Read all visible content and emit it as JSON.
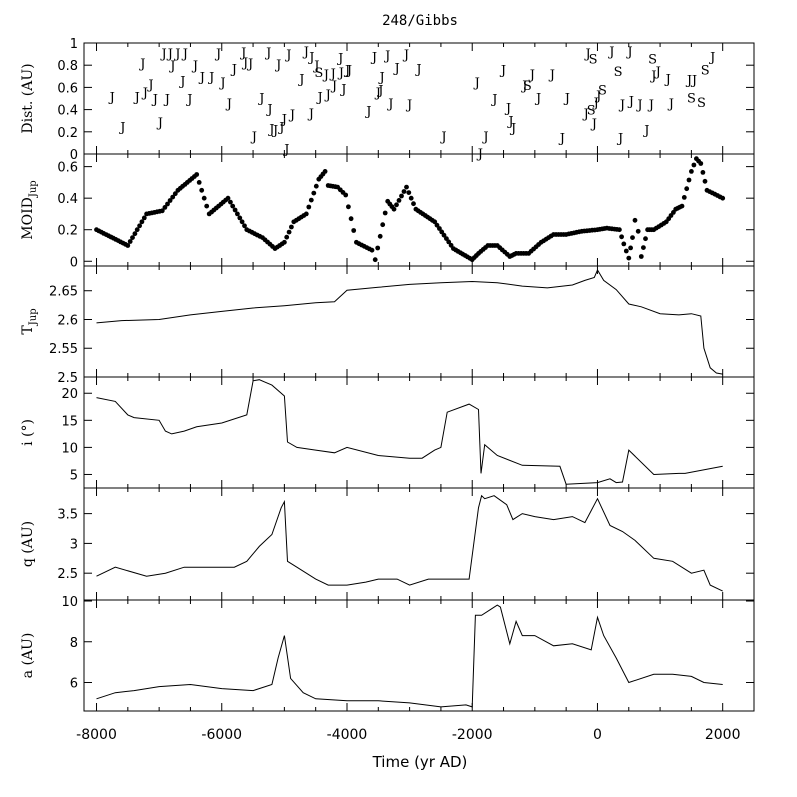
{
  "chart_data": {
    "type": "line",
    "title": "248/Gibbs",
    "xlabel": "Time (yr AD)",
    "xlim": [
      -8200,
      2500
    ],
    "xticks": [
      -8000,
      -6000,
      -4000,
      -2000,
      0,
      2000
    ],
    "panels": [
      {
        "id": "dist",
        "kind": "encounters",
        "ylabel": "Dist. (AU)",
        "ylim": [
          0,
          1
        ],
        "yticks": [
          0,
          0.2,
          0.4,
          0.6,
          0.8,
          1
        ],
        "points": [
          {
            "t": -7750,
            "d": 0.52,
            "b": "J"
          },
          {
            "t": -7580,
            "d": 0.25,
            "b": "J"
          },
          {
            "t": -7350,
            "d": 0.52,
            "b": "J"
          },
          {
            "t": -7220,
            "d": 0.56,
            "b": "J"
          },
          {
            "t": -7260,
            "d": 0.82,
            "b": "J"
          },
          {
            "t": -7130,
            "d": 0.63,
            "b": "J"
          },
          {
            "t": -7060,
            "d": 0.5,
            "b": "J"
          },
          {
            "t": -6980,
            "d": 0.29,
            "b": "J"
          },
          {
            "t": -6920,
            "d": 0.91,
            "b": "J"
          },
          {
            "t": -6870,
            "d": 0.5,
            "b": "J"
          },
          {
            "t": -6820,
            "d": 0.91,
            "b": "J"
          },
          {
            "t": -6780,
            "d": 0.8,
            "b": "J"
          },
          {
            "t": -6700,
            "d": 0.91,
            "b": "J"
          },
          {
            "t": -6620,
            "d": 0.66,
            "b": "J"
          },
          {
            "t": -6580,
            "d": 0.91,
            "b": "J"
          },
          {
            "t": -6510,
            "d": 0.5,
            "b": "J"
          },
          {
            "t": -6420,
            "d": 0.8,
            "b": "J"
          },
          {
            "t": -6310,
            "d": 0.7,
            "b": "J"
          },
          {
            "t": -6160,
            "d": 0.7,
            "b": "J"
          },
          {
            "t": -6050,
            "d": 0.91,
            "b": "J"
          },
          {
            "t": -5980,
            "d": 0.65,
            "b": "J"
          },
          {
            "t": -5880,
            "d": 0.46,
            "b": "J"
          },
          {
            "t": -5800,
            "d": 0.77,
            "b": "J"
          },
          {
            "t": -5650,
            "d": 0.92,
            "b": "J"
          },
          {
            "t": -5620,
            "d": 0.83,
            "b": "J"
          },
          {
            "t": -5540,
            "d": 0.82,
            "b": "J"
          },
          {
            "t": -5480,
            "d": 0.16,
            "b": "J"
          },
          {
            "t": -5360,
            "d": 0.51,
            "b": "J"
          },
          {
            "t": -5250,
            "d": 0.92,
            "b": "J"
          },
          {
            "t": -5230,
            "d": 0.41,
            "b": "J"
          },
          {
            "t": -5200,
            "d": 0.23,
            "b": "J"
          },
          {
            "t": -5140,
            "d": 0.22,
            "b": "J"
          },
          {
            "t": -5090,
            "d": 0.81,
            "b": "J"
          },
          {
            "t": -5040,
            "d": 0.25,
            "b": "J"
          },
          {
            "t": -5000,
            "d": 0.32,
            "b": "J"
          },
          {
            "t": -4960,
            "d": 0.05,
            "b": "J"
          },
          {
            "t": -4930,
            "d": 0.9,
            "b": "J"
          },
          {
            "t": -4870,
            "d": 0.36,
            "b": "J"
          },
          {
            "t": -4720,
            "d": 0.68,
            "b": "J"
          },
          {
            "t": -4650,
            "d": 0.93,
            "b": "J"
          },
          {
            "t": -4570,
            "d": 0.37,
            "b": "J"
          },
          {
            "t": -4560,
            "d": 0.88,
            "b": "J"
          },
          {
            "t": -4480,
            "d": 0.8,
            "b": "J"
          },
          {
            "t": -4450,
            "d": 0.74,
            "b": "S"
          },
          {
            "t": -4430,
            "d": 0.52,
            "b": "J"
          },
          {
            "t": -4330,
            "d": 0.72,
            "b": "J"
          },
          {
            "t": -4300,
            "d": 0.54,
            "b": "J"
          },
          {
            "t": -4220,
            "d": 0.73,
            "b": "J"
          },
          {
            "t": -4200,
            "d": 0.62,
            "b": "J"
          },
          {
            "t": -4100,
            "d": 0.87,
            "b": "J"
          },
          {
            "t": -4090,
            "d": 0.74,
            "b": "J"
          },
          {
            "t": -4050,
            "d": 0.59,
            "b": "J"
          },
          {
            "t": -3990,
            "d": 0.76,
            "b": "J"
          },
          {
            "t": -3960,
            "d": 0.76,
            "b": "J"
          },
          {
            "t": -3650,
            "d": 0.39,
            "b": "J"
          },
          {
            "t": -3560,
            "d": 0.88,
            "b": "J"
          },
          {
            "t": -3500,
            "d": 0.56,
            "b": "J"
          },
          {
            "t": -3460,
            "d": 0.58,
            "b": "J"
          },
          {
            "t": -3440,
            "d": 0.7,
            "b": "J"
          },
          {
            "t": -3350,
            "d": 0.89,
            "b": "J"
          },
          {
            "t": -3300,
            "d": 0.46,
            "b": "J"
          },
          {
            "t": -3200,
            "d": 0.78,
            "b": "J"
          },
          {
            "t": -3050,
            "d": 0.9,
            "b": "J"
          },
          {
            "t": -3000,
            "d": 0.45,
            "b": "J"
          },
          {
            "t": -2850,
            "d": 0.77,
            "b": "J"
          },
          {
            "t": -2450,
            "d": 0.16,
            "b": "J"
          },
          {
            "t": -1920,
            "d": 0.65,
            "b": "J"
          },
          {
            "t": -1870,
            "d": 0.01,
            "b": "J"
          },
          {
            "t": -1780,
            "d": 0.16,
            "b": "J"
          },
          {
            "t": -1640,
            "d": 0.5,
            "b": "J"
          },
          {
            "t": -1500,
            "d": 0.76,
            "b": "J"
          },
          {
            "t": -1420,
            "d": 0.42,
            "b": "J"
          },
          {
            "t": -1380,
            "d": 0.3,
            "b": "J"
          },
          {
            "t": -1340,
            "d": 0.24,
            "b": "J"
          },
          {
            "t": -1160,
            "d": 0.62,
            "b": "J"
          },
          {
            "t": -1120,
            "d": 0.62,
            "b": "S"
          },
          {
            "t": -1040,
            "d": 0.72,
            "b": "J"
          },
          {
            "t": -940,
            "d": 0.51,
            "b": "J"
          },
          {
            "t": -720,
            "d": 0.72,
            "b": "J"
          },
          {
            "t": -560,
            "d": 0.15,
            "b": "J"
          },
          {
            "t": -480,
            "d": 0.51,
            "b": "J"
          },
          {
            "t": -180,
            "d": 0.37,
            "b": "J"
          },
          {
            "t": -150,
            "d": 0.91,
            "b": "J"
          },
          {
            "t": -100,
            "d": 0.4,
            "b": "S"
          },
          {
            "t": -70,
            "d": 0.86,
            "b": "S"
          },
          {
            "t": -50,
            "d": 0.28,
            "b": "J"
          },
          {
            "t": -20,
            "d": 0.47,
            "b": "J"
          },
          {
            "t": 20,
            "d": 0.53,
            "b": "J"
          },
          {
            "t": 80,
            "d": 0.58,
            "b": "S"
          },
          {
            "t": 230,
            "d": 0.93,
            "b": "J"
          },
          {
            "t": 330,
            "d": 0.75,
            "b": "S"
          },
          {
            "t": 370,
            "d": 0.15,
            "b": "J"
          },
          {
            "t": 400,
            "d": 0.45,
            "b": "J"
          },
          {
            "t": 520,
            "d": 0.93,
            "b": "J"
          },
          {
            "t": 540,
            "d": 0.48,
            "b": "J"
          },
          {
            "t": 680,
            "d": 0.45,
            "b": "J"
          },
          {
            "t": 790,
            "d": 0.22,
            "b": "J"
          },
          {
            "t": 860,
            "d": 0.45,
            "b": "J"
          },
          {
            "t": 880,
            "d": 0.86,
            "b": "S"
          },
          {
            "t": 900,
            "d": 0.71,
            "b": "J"
          },
          {
            "t": 970,
            "d": 0.75,
            "b": "J"
          },
          {
            "t": 1130,
            "d": 0.68,
            "b": "J"
          },
          {
            "t": 1180,
            "d": 0.46,
            "b": "J"
          },
          {
            "t": 1470,
            "d": 0.67,
            "b": "J"
          },
          {
            "t": 1500,
            "d": 0.51,
            "b": "S"
          },
          {
            "t": 1550,
            "d": 0.67,
            "b": "J"
          },
          {
            "t": 1660,
            "d": 0.47,
            "b": "S"
          },
          {
            "t": 1720,
            "d": 0.76,
            "b": "S"
          },
          {
            "t": 1840,
            "d": 0.88,
            "b": "J"
          }
        ]
      },
      {
        "id": "moid",
        "kind": "scatter",
        "ylabel": "MOID",
        "ylabel_sub": "Jup",
        "ylim": [
          -0.03,
          0.68
        ],
        "yticks": [
          0,
          0.2,
          0.4,
          0.6
        ],
        "x": [
          -8000,
          -7500,
          -7200,
          -6950,
          -6700,
          -6400,
          -6200,
          -5900,
          -5600,
          -5350,
          -5150,
          -5000,
          -4850,
          -4650,
          -4450,
          -4350,
          -4300,
          -4150,
          -4020,
          -3850,
          -3600,
          -3550,
          -3350,
          -3250,
          -3050,
          -2900,
          -2600,
          -2300,
          -2000,
          -1900,
          -1750,
          -1600,
          -1400,
          -1300,
          -1100,
          -900,
          -700,
          -500,
          -250,
          0,
          150,
          350,
          420,
          500,
          560,
          600,
          650,
          700,
          800,
          900,
          1100,
          1250,
          1350,
          1500,
          1580,
          1650,
          1750,
          2000
        ],
        "y": [
          0.2,
          0.1,
          0.3,
          0.32,
          0.45,
          0.55,
          0.3,
          0.4,
          0.2,
          0.15,
          0.08,
          0.12,
          0.25,
          0.3,
          0.52,
          0.57,
          0.48,
          0.47,
          0.42,
          0.12,
          0.07,
          0.01,
          0.38,
          0.33,
          0.47,
          0.33,
          0.25,
          0.08,
          0.01,
          0.05,
          0.1,
          0.1,
          0.03,
          0.05,
          0.05,
          0.12,
          0.17,
          0.17,
          0.19,
          0.2,
          0.21,
          0.2,
          0.11,
          0.02,
          0.15,
          0.26,
          0.19,
          0.03,
          0.2,
          0.2,
          0.25,
          0.33,
          0.35,
          0.57,
          0.65,
          0.62,
          0.45,
          0.4
        ]
      },
      {
        "id": "tjup",
        "kind": "line",
        "ylabel": "T",
        "ylabel_sub": "Jup",
        "ylim": [
          2.5,
          2.693
        ],
        "yticks": [
          2.5,
          2.55,
          2.6,
          2.65
        ],
        "x": [
          -8000,
          -7600,
          -7000,
          -6500,
          -6000,
          -5500,
          -5000,
          -4500,
          -4200,
          -4000,
          -3500,
          -3000,
          -2500,
          -2000,
          -1600,
          -1200,
          -800,
          -400,
          -200,
          -50,
          0,
          100,
          300,
          500,
          700,
          1000,
          1300,
          1500,
          1650,
          1700,
          1800,
          1900,
          2000
        ],
        "y": [
          2.594,
          2.598,
          2.6,
          2.608,
          2.614,
          2.62,
          2.624,
          2.629,
          2.631,
          2.651,
          2.656,
          2.661,
          2.664,
          2.666,
          2.664,
          2.658,
          2.655,
          2.66,
          2.668,
          2.673,
          2.686,
          2.668,
          2.652,
          2.627,
          2.622,
          2.61,
          2.608,
          2.61,
          2.606,
          2.55,
          2.516,
          2.507,
          2.505
        ]
      },
      {
        "id": "incl",
        "kind": "line",
        "ylabel": "i (°)",
        "ylim": [
          2.5,
          23
        ],
        "yticks": [
          5,
          10,
          15,
          20
        ],
        "x": [
          -8000,
          -7700,
          -7500,
          -7400,
          -7000,
          -6900,
          -6800,
          -6600,
          -6400,
          -6000,
          -5600,
          -5500,
          -5400,
          -5200,
          -5000,
          -4950,
          -4800,
          -4500,
          -4200,
          -4000,
          -3500,
          -3000,
          -2800,
          -2600,
          -2500,
          -2400,
          -2050,
          -1900,
          -1860,
          -1800,
          -1600,
          -1200,
          -600,
          -500,
          0,
          200,
          300,
          400,
          500,
          900,
          1300,
          1400,
          2000
        ],
        "y": [
          19.2,
          18.5,
          16,
          15.5,
          15,
          13,
          12.5,
          13,
          13.8,
          14.5,
          16,
          22.3,
          22.5,
          21.5,
          19.5,
          11,
          10,
          9.5,
          9,
          10,
          8.5,
          8,
          8,
          9.5,
          10,
          16.5,
          18,
          17,
          5.2,
          10.5,
          8.5,
          6.7,
          6.5,
          3.2,
          3.5,
          4.2,
          3.5,
          3.6,
          9.5,
          5,
          5.2,
          5.2,
          6.5
        ]
      },
      {
        "id": "q",
        "kind": "line",
        "ylabel": "q (AU)",
        "ylim": [
          2.05,
          3.93
        ],
        "yticks": [
          2.5,
          3,
          3.5
        ],
        "x": [
          -8000,
          -7700,
          -7200,
          -6900,
          -6600,
          -6200,
          -5800,
          -5600,
          -5400,
          -5200,
          -5050,
          -5000,
          -4950,
          -4800,
          -4500,
          -4300,
          -4000,
          -3700,
          -3500,
          -3200,
          -3000,
          -2700,
          -2400,
          -2050,
          -1900,
          -1850,
          -1800,
          -1650,
          -1450,
          -1350,
          -1200,
          -1000,
          -700,
          -400,
          -200,
          -100,
          0,
          200,
          400,
          600,
          900,
          1200,
          1500,
          1700,
          1800,
          2000
        ],
        "y": [
          2.45,
          2.6,
          2.45,
          2.5,
          2.6,
          2.6,
          2.6,
          2.7,
          2.95,
          3.15,
          3.6,
          3.7,
          2.7,
          2.6,
          2.4,
          2.3,
          2.3,
          2.35,
          2.4,
          2.4,
          2.3,
          2.4,
          2.4,
          2.4,
          3.6,
          3.8,
          3.75,
          3.8,
          3.65,
          3.4,
          3.5,
          3.45,
          3.4,
          3.45,
          3.35,
          3.55,
          3.75,
          3.3,
          3.2,
          3.05,
          2.75,
          2.7,
          2.5,
          2.55,
          2.3,
          2.2
        ]
      },
      {
        "id": "a",
        "kind": "line",
        "ylabel": "a (AU)",
        "ylim": [
          4.6,
          10.05
        ],
        "yticks": [
          6,
          8,
          10
        ],
        "x": [
          -8000,
          -7700,
          -7400,
          -7000,
          -6500,
          -6000,
          -5500,
          -5200,
          -5100,
          -5000,
          -4900,
          -4700,
          -4500,
          -4000,
          -3500,
          -3000,
          -2500,
          -2100,
          -2000,
          -1950,
          -1850,
          -1700,
          -1600,
          -1550,
          -1400,
          -1300,
          -1200,
          -1000,
          -700,
          -400,
          -100,
          0,
          100,
          300,
          500,
          900,
          1200,
          1500,
          1700,
          2000
        ],
        "y": [
          5.2,
          5.5,
          5.6,
          5.8,
          5.9,
          5.7,
          5.6,
          5.9,
          7.2,
          8.3,
          6.2,
          5.5,
          5.2,
          5.1,
          5.1,
          5,
          4.8,
          4.9,
          4.8,
          9.3,
          9.3,
          9.6,
          9.8,
          9.7,
          7.9,
          9,
          8.3,
          8.3,
          7.8,
          7.9,
          7.6,
          9.2,
          8.3,
          7.2,
          6,
          6.4,
          6.4,
          6.3,
          6,
          5.9
        ]
      }
    ]
  }
}
